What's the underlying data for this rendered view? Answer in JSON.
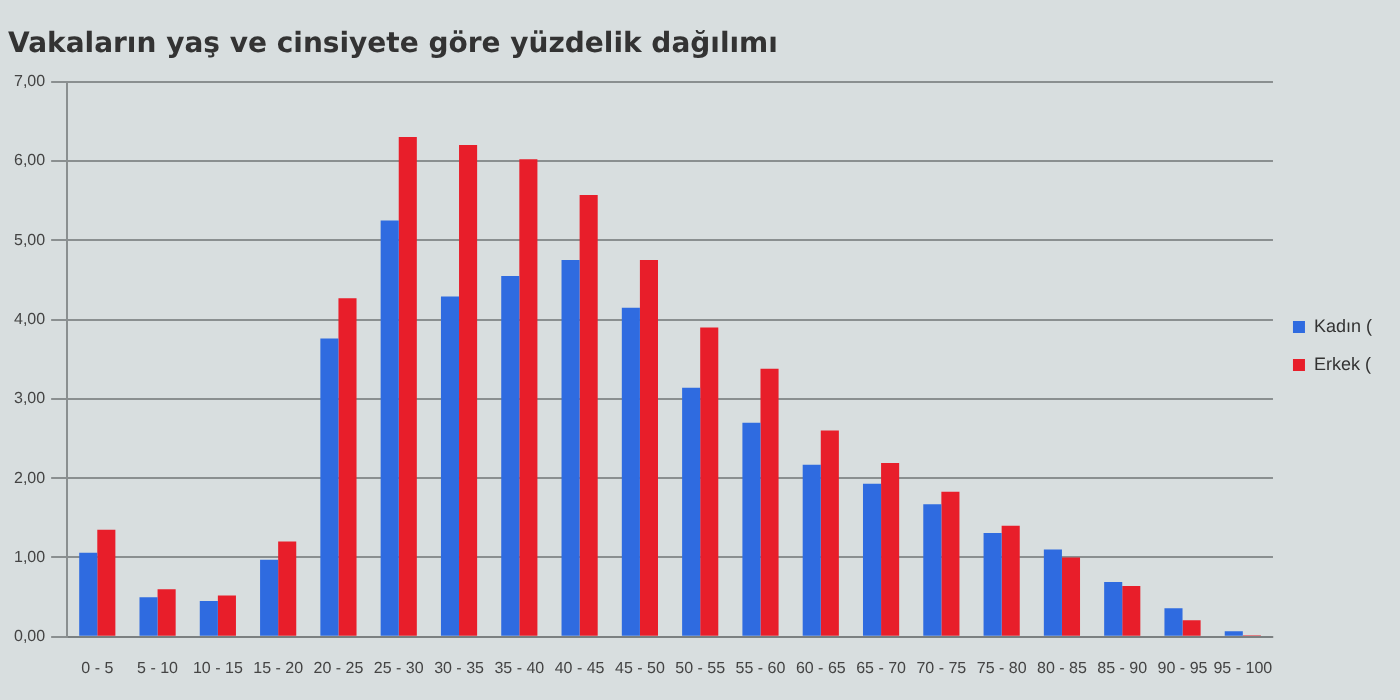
{
  "chart_data": {
    "type": "bar",
    "title": "Vakaların yaş ve cinsiyete göre yüzdelik dağılımı",
    "categories": [
      "0 - 5",
      "5 - 10",
      "10 - 15",
      "15 - 20",
      "20 - 25",
      "25 - 30",
      "30 - 35",
      "35 - 40",
      "40 - 45",
      "45 - 50",
      "50 - 55",
      "55 - 60",
      "60 - 65",
      "65 - 70",
      "70 - 75",
      "75 - 80",
      "80 - 85",
      "85 - 90",
      "90 - 95",
      "95 - 100"
    ],
    "series": [
      {
        "name": "Kadın (",
        "color": "#2f6be0",
        "values": [
          1.06,
          0.5,
          0.45,
          0.97,
          3.76,
          5.25,
          4.29,
          4.55,
          4.75,
          4.15,
          3.14,
          2.7,
          2.17,
          1.93,
          1.67,
          1.31,
          1.1,
          0.69,
          0.36,
          0.07
        ]
      },
      {
        "name": "Erkek (",
        "color": "#e81e2a",
        "values": [
          1.35,
          0.6,
          0.52,
          1.2,
          4.27,
          6.3,
          6.2,
          6.02,
          5.57,
          4.75,
          3.9,
          3.38,
          2.6,
          2.19,
          1.83,
          1.4,
          1.0,
          0.64,
          0.21,
          0.02
        ]
      }
    ],
    "ylim": [
      0,
      7
    ],
    "yticks": [
      {
        "value": 0,
        "label": "0,00"
      },
      {
        "value": 1,
        "label": "1,00"
      },
      {
        "value": 2,
        "label": "2,00"
      },
      {
        "value": 3,
        "label": "3,00"
      },
      {
        "value": 4,
        "label": "4,00"
      },
      {
        "value": 5,
        "label": "5,00"
      },
      {
        "value": 6,
        "label": "6,00"
      },
      {
        "value": 7,
        "label": "7,00"
      }
    ],
    "grid": "y",
    "legend": "right"
  }
}
